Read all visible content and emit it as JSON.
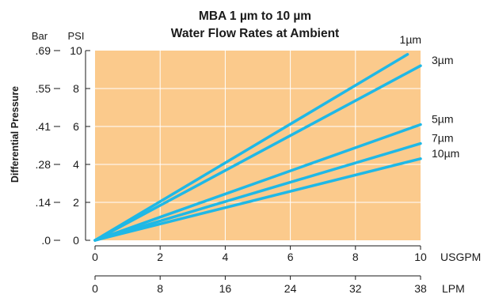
{
  "chart_data": {
    "type": "line",
    "title": [
      "MBA 1 µm to 10 µm",
      "Water Flow Rates at Ambient"
    ],
    "ylabel": "Differential Pressure",
    "x_axes": {
      "primary": {
        "unit": "USGPM",
        "ticks": [
          "0",
          "2",
          "4",
          "6",
          "8",
          "10"
        ],
        "range": [
          0,
          10
        ]
      },
      "secondary": {
        "unit": "LPM",
        "ticks": [
          "0",
          "8",
          "16",
          "24",
          "32",
          "38"
        ]
      }
    },
    "y_axes": {
      "primary": {
        "unit": "PSI",
        "ticks": [
          "0",
          "2",
          "4",
          "6",
          "8",
          "10"
        ],
        "range": [
          0,
          10
        ]
      },
      "secondary": {
        "unit": "Bar",
        "ticks": [
          ".0",
          ".14",
          ".28",
          ".41",
          ".55",
          ".69"
        ]
      }
    },
    "grid": true,
    "colors": {
      "plot_background": "#fbca8c",
      "grid": "#ffffff",
      "series": "#1fb8e6",
      "axis": "#1a1a1a"
    },
    "series": [
      {
        "name": "1µm",
        "x": [
          0,
          9.6
        ],
        "y": [
          0,
          9.8
        ]
      },
      {
        "name": "3µm",
        "x": [
          0,
          10
        ],
        "y": [
          0,
          9.2
        ]
      },
      {
        "name": "5µm",
        "x": [
          0,
          10
        ],
        "y": [
          0,
          6.1
        ]
      },
      {
        "name": "7µm",
        "x": [
          0,
          10
        ],
        "y": [
          0,
          5.1
        ]
      },
      {
        "name": "10µm",
        "x": [
          0,
          10
        ],
        "y": [
          0,
          4.3
        ]
      }
    ]
  }
}
